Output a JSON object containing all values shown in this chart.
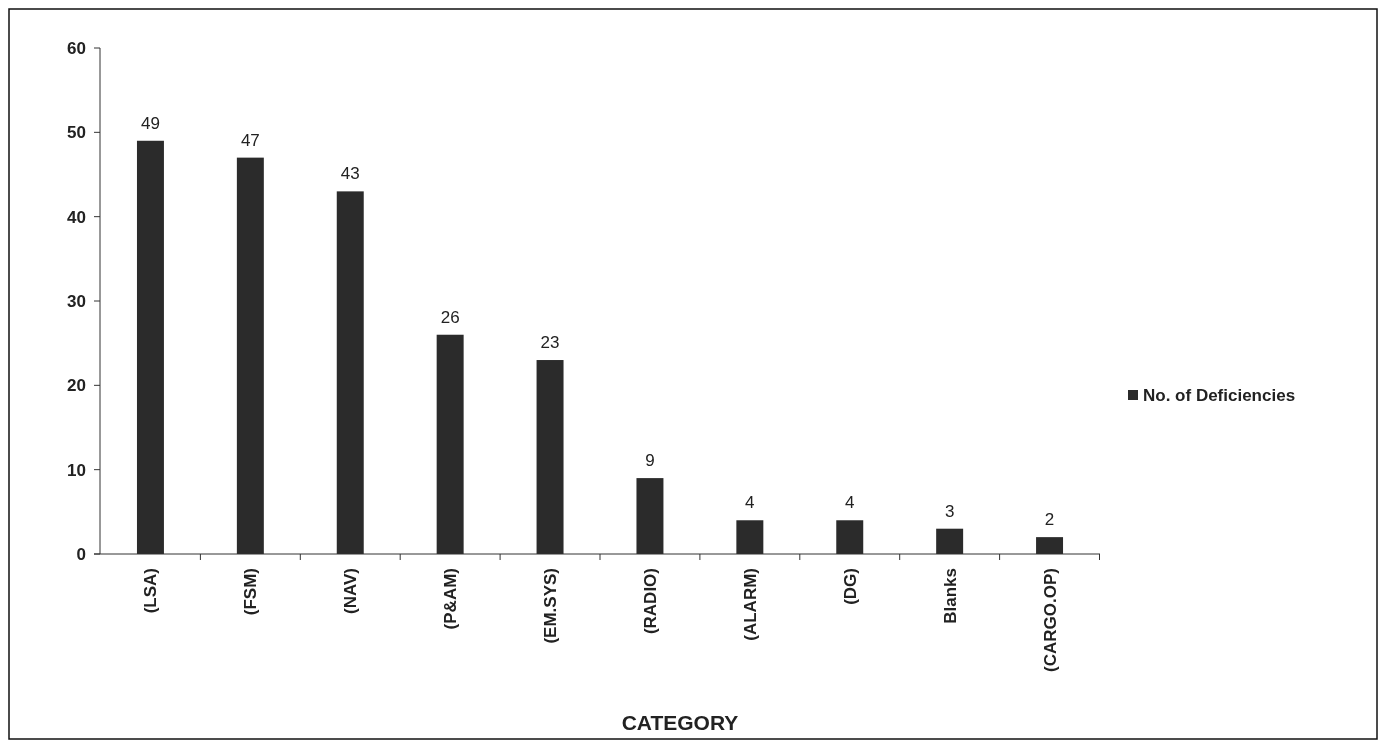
{
  "chart_data": {
    "type": "bar",
    "xlabel": "CATEGORY",
    "categories": [
      "(LSA)",
      "(FSM)",
      "(NAV)",
      "(P&AM)",
      "(EM.SYS)",
      "(RADIO)",
      "(ALARM)",
      "(DG)",
      "Blanks",
      "(CARGO.OP)"
    ],
    "series": [
      {
        "name": "No. of Deficiencies",
        "color": "#2b2b2b",
        "values": [
          49,
          47,
          43,
          26,
          23,
          9,
          4,
          4,
          3,
          2
        ]
      }
    ],
    "ylim": [
      0,
      60
    ],
    "yticks": [
      0,
      10,
      20,
      30,
      40,
      50,
      60
    ],
    "data_labels": true,
    "legend": "right",
    "grid": false
  }
}
